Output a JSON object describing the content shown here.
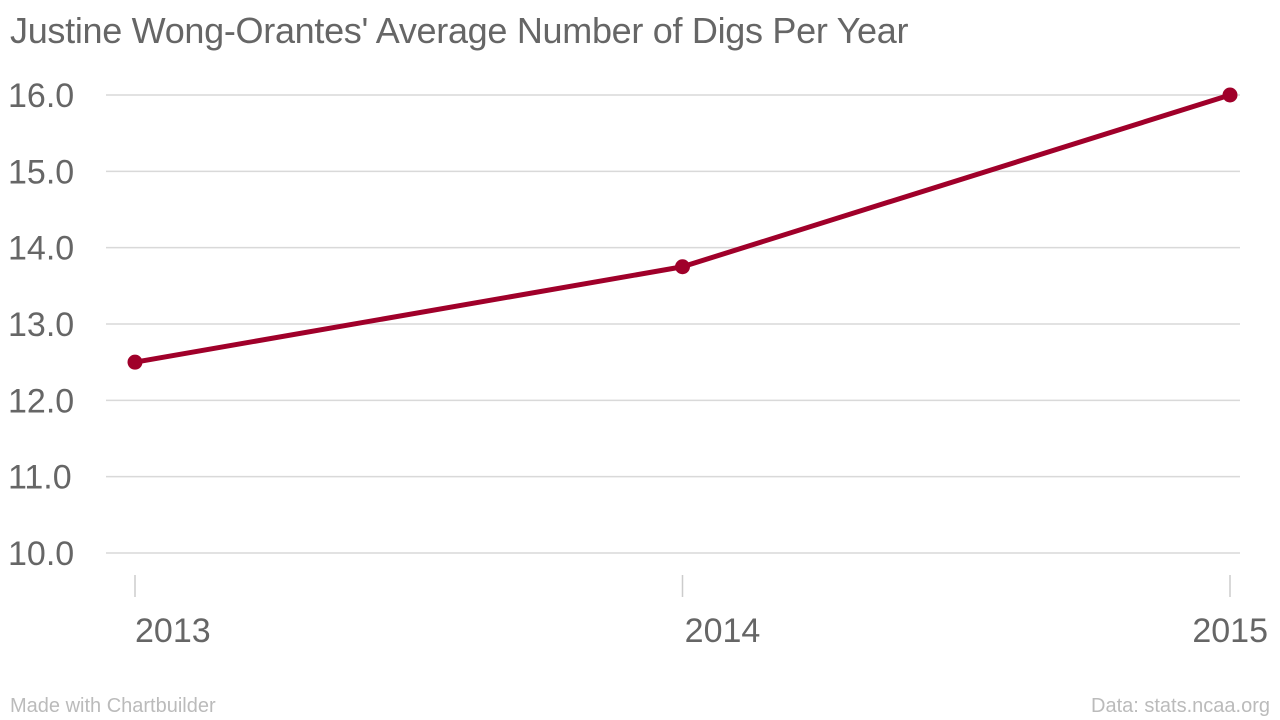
{
  "chart_data": {
    "type": "line",
    "title": "Justine Wong-Orantes' Average Number of Digs Per Year",
    "xlabel": "",
    "ylabel": "",
    "categories": [
      "2013",
      "2014",
      "2015"
    ],
    "series": [
      {
        "values": [
          12.5,
          13.75,
          16.0
        ]
      }
    ],
    "ylim": [
      10.0,
      16.0
    ],
    "yticks": [
      "10.0",
      "11.0",
      "12.0",
      "13.0",
      "14.0",
      "15.0",
      "16.0"
    ],
    "grid": true,
    "line_color": "#a0002a",
    "grid_color": "#d9d9d9"
  },
  "footer": {
    "credit": "Made with Chartbuilder",
    "source": "Data: stats.ncaa.org"
  }
}
